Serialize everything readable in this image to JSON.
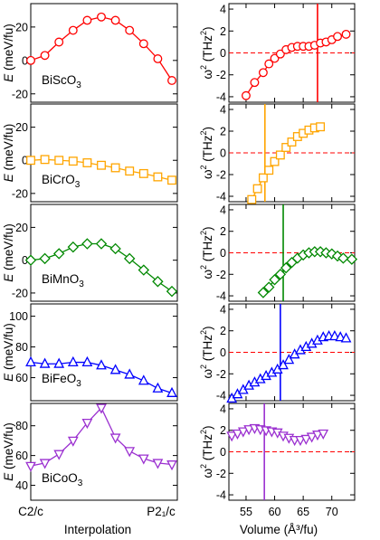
{
  "labels": {
    "left_ylabel": "E (meV/fu)",
    "right_ylabel": "ω² (THz²)",
    "left_xlabel": "Interpolation",
    "right_xlabel": "Volume (Å³/fu)",
    "left_xtick_start": "C2/c",
    "left_xtick_end": "P2₁/c"
  },
  "chart_data": [
    {
      "type": "line",
      "material": "BiScO3",
      "label_main": "BiScO",
      "label_sub": "3",
      "color": "#ff0000",
      "marker": "circle",
      "xlabel": "Interpolation",
      "ylabel": "E (meV/fu)",
      "ylim": [
        -25,
        34
      ],
      "yticks": [
        -20,
        0,
        20
      ],
      "xticks": [
        "C2/c",
        "P21/c"
      ],
      "x": [
        0,
        1,
        2,
        3,
        4,
        5,
        6,
        7,
        8,
        9,
        10
      ],
      "values": [
        0,
        3,
        11,
        18,
        24,
        26,
        24,
        18,
        10,
        1,
        -12
      ]
    },
    {
      "type": "line",
      "material": "BiCrO3",
      "label_main": "BiCrO",
      "label_sub": "3",
      "color": "#ffa500",
      "marker": "square",
      "xlabel": "Interpolation",
      "ylabel": "E (meV/fu)",
      "ylim": [
        -25,
        34
      ],
      "yticks": [
        -20,
        0,
        20
      ],
      "xticks": [
        "C2/c",
        "P21/c"
      ],
      "x": [
        0,
        1,
        2,
        3,
        4,
        5,
        6,
        7,
        8,
        9,
        10
      ],
      "values": [
        0,
        0.5,
        0,
        -0.5,
        -1.5,
        -3,
        -4.5,
        -6.5,
        -8,
        -10,
        -12
      ]
    },
    {
      "type": "line",
      "material": "BiMnO3",
      "label_main": "BiMnO",
      "label_sub": "3",
      "color": "#008800",
      "marker": "diamond",
      "xlabel": "Interpolation",
      "ylabel": "E (meV/fu)",
      "ylim": [
        -25,
        34
      ],
      "yticks": [
        -20,
        0,
        20
      ],
      "xticks": [
        "C2/c",
        "P21/c"
      ],
      "x": [
        0,
        1,
        2,
        3,
        4,
        5,
        6,
        7,
        8,
        9,
        10
      ],
      "values": [
        0,
        1,
        4,
        8,
        10,
        10,
        7,
        1,
        -6,
        -13,
        -19
      ]
    },
    {
      "type": "line",
      "material": "BiFeO3",
      "label_main": "BiFeO",
      "label_sub": "3",
      "color": "#0000ff",
      "marker": "triangle-up",
      "xlabel": "Interpolation",
      "ylabel": "E (meV/fu)",
      "ylim": [
        45,
        108
      ],
      "yticks": [
        60,
        80,
        100
      ],
      "xticks": [
        "C2/c",
        "P21/c"
      ],
      "x": [
        0,
        1,
        2,
        3,
        4,
        5,
        6,
        7,
        8,
        9,
        10
      ],
      "values": [
        70,
        69,
        69,
        70,
        70,
        68,
        65,
        62,
        58,
        53,
        50
      ]
    },
    {
      "type": "line",
      "material": "BiCoO3",
      "label_main": "BiCoO",
      "label_sub": "3",
      "color": "#9b30d0",
      "marker": "triangle-down",
      "xlabel": "Interpolation",
      "ylabel": "E (meV/fu)",
      "ylim": [
        30,
        95
      ],
      "yticks": [
        40,
        60,
        80
      ],
      "xticks": [
        "C2/c",
        "P21/c"
      ],
      "x": [
        0,
        1,
        2,
        3,
        4,
        5,
        6,
        7,
        8,
        9,
        10
      ],
      "values": [
        53,
        55,
        61,
        70,
        82,
        92,
        72,
        63,
        58,
        55,
        54
      ]
    },
    {
      "type": "line",
      "material": "BiScO3",
      "color": "#ff0000",
      "marker": "circle",
      "xlabel": "Volume (Å³/fu)",
      "ylabel": "ω² (THz²)",
      "xlim": [
        52,
        74
      ],
      "ylim": [
        -4.5,
        4.5
      ],
      "xticks": [
        55,
        60,
        65,
        70
      ],
      "yticks": [
        -4,
        -2,
        0,
        2,
        4
      ],
      "zero_line": 0,
      "marker_volume": 67.5,
      "x": [
        55,
        56.5,
        58,
        59,
        60,
        61,
        62,
        63,
        64,
        65,
        66,
        67,
        68,
        69,
        70,
        71,
        72.5
      ],
      "values": [
        -3.9,
        -2.7,
        -1.8,
        -1.0,
        -0.5,
        -0.1,
        0.3,
        0.5,
        0.6,
        0.6,
        0.6,
        0.7,
        0.9,
        1.0,
        1.2,
        1.5,
        1.7
      ]
    },
    {
      "type": "line",
      "material": "BiCrO3",
      "color": "#ffa500",
      "marker": "square",
      "xlabel": "Volume (Å³/fu)",
      "ylabel": "ω² (THz²)",
      "xlim": [
        52,
        74
      ],
      "ylim": [
        -4.5,
        4.5
      ],
      "xticks": [
        55,
        60,
        65,
        70
      ],
      "yticks": [
        -4,
        -2,
        0,
        2,
        4
      ],
      "zero_line": 0,
      "marker_volume": 58.3,
      "x": [
        56,
        57,
        58,
        59,
        60,
        61,
        62,
        63,
        64,
        65,
        66,
        67,
        68
      ],
      "values": [
        -4.3,
        -3.3,
        -2.3,
        -1.6,
        -0.8,
        -0.2,
        0.5,
        1.0,
        1.5,
        1.8,
        2.1,
        2.3,
        2.4
      ]
    },
    {
      "type": "line",
      "material": "BiMnO3",
      "color": "#008800",
      "marker": "diamond",
      "xlabel": "Volume (Å³/fu)",
      "ylabel": "ω² (THz²)",
      "xlim": [
        52,
        74
      ],
      "ylim": [
        -4.5,
        4.5
      ],
      "xticks": [
        55,
        60,
        65,
        70
      ],
      "yticks": [
        -4,
        -2,
        0,
        2,
        4
      ],
      "zero_line": 0,
      "marker_volume": 61.5,
      "x": [
        58,
        59,
        60,
        61,
        62,
        63,
        64,
        65,
        66,
        67,
        68,
        69,
        70,
        71,
        72,
        73.5
      ],
      "values": [
        -3.7,
        -3.2,
        -2.5,
        -2.0,
        -1.4,
        -0.9,
        -0.5,
        -0.2,
        0.0,
        0.1,
        0.1,
        0.0,
        -0.1,
        -0.3,
        -0.5,
        -0.6
      ]
    },
    {
      "type": "line",
      "material": "BiFeO3",
      "color": "#0000ff",
      "marker": "triangle-up",
      "xlabel": "Volume (Å³/fu)",
      "ylabel": "ω² (THz²)",
      "xlim": [
        52,
        74
      ],
      "ylim": [
        -4.5,
        4.5
      ],
      "xticks": [
        55,
        60,
        65,
        70
      ],
      "yticks": [
        -4,
        -2,
        0,
        2,
        4
      ],
      "zero_line": 0,
      "marker_volume": 61,
      "x": [
        52.5,
        53.5,
        54.5,
        55.5,
        56.5,
        57.5,
        58.5,
        59.5,
        60.5,
        61.5,
        62.5,
        63.5,
        64.5,
        65.5,
        66.5,
        67.5,
        68.5,
        69.5,
        70.5,
        71.5,
        72.5
      ],
      "values": [
        -4.3,
        -3.9,
        -3.5,
        -3.1,
        -2.8,
        -2.5,
        -2.2,
        -1.9,
        -1.6,
        -1.2,
        -0.7,
        -0.2,
        0.2,
        0.5,
        0.8,
        1.1,
        1.4,
        1.5,
        1.5,
        1.4,
        1.3
      ]
    },
    {
      "type": "line",
      "material": "BiCoO3",
      "color": "#9b30d0",
      "marker": "triangle-down",
      "xlabel": "Volume (Å³/fu)",
      "ylabel": "ω² (THz²)",
      "xlim": [
        52,
        74
      ],
      "ylim": [
        -4.5,
        4.5
      ],
      "xticks": [
        55,
        60,
        65,
        70
      ],
      "yticks": [
        -4,
        -2,
        0,
        2,
        4
      ],
      "zero_line": 0,
      "marker_volume": 58.2,
      "x": [
        52.5,
        53.5,
        54.5,
        55.5,
        56.5,
        57.5,
        58.5,
        59.5,
        60.5,
        61.5,
        62.5,
        63.5,
        64.5,
        65.5,
        66.5,
        67.5,
        68.5
      ],
      "values": [
        1.5,
        1.7,
        1.9,
        2.1,
        2.2,
        2.1,
        2.0,
        1.9,
        1.8,
        1.5,
        1.3,
        1.1,
        1.1,
        1.2,
        1.4,
        1.6,
        1.7
      ]
    }
  ]
}
